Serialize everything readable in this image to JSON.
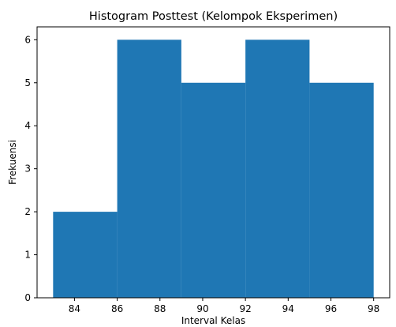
{
  "chart_data": {
    "type": "bar",
    "title": "Histogram Posttest (Kelompok Eksperimen)",
    "xlabel": "Interval Kelas",
    "ylabel": "Frekuensi",
    "bins": [
      {
        "start": 83,
        "end": 86,
        "value": 2
      },
      {
        "start": 86,
        "end": 89,
        "value": 6
      },
      {
        "start": 89,
        "end": 92,
        "value": 5
      },
      {
        "start": 92,
        "end": 95,
        "value": 6
      },
      {
        "start": 95,
        "end": 98,
        "value": 5
      }
    ],
    "xlim": [
      82.25,
      98.75
    ],
    "ylim": [
      0,
      6.3
    ],
    "xticks": [
      84,
      86,
      88,
      90,
      92,
      94,
      96,
      98
    ],
    "yticks": [
      0,
      1,
      2,
      3,
      4,
      5,
      6
    ],
    "bar_color": "#1f77b4",
    "grid": false,
    "legend": "none"
  }
}
